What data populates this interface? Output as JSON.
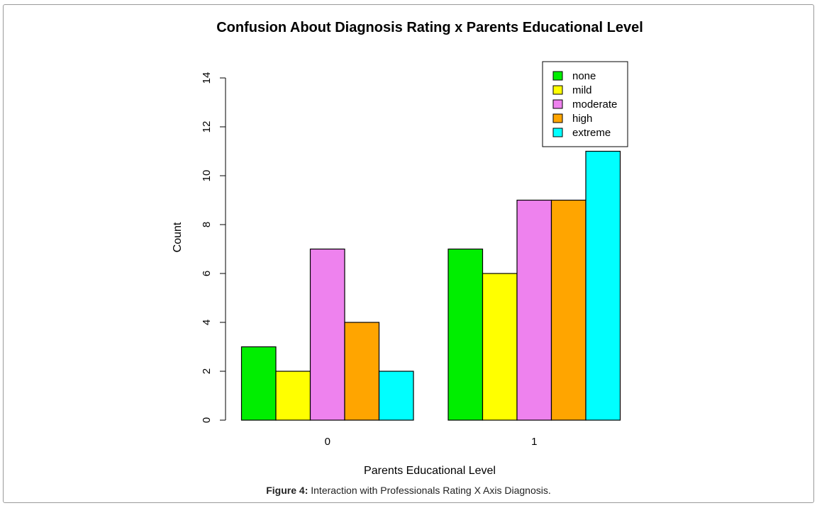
{
  "chart_data": {
    "type": "bar",
    "title": "Confusion About Diagnosis Rating x Parents Educational Level",
    "xlabel": "Parents Educational Level",
    "ylabel": "Count",
    "categories": [
      "0",
      "1"
    ],
    "ylim": [
      0,
      14
    ],
    "yticks": [
      0,
      2,
      4,
      6,
      8,
      10,
      12,
      14
    ],
    "legend_position": "top-right",
    "series": [
      {
        "name": "none",
        "color": "#00ee00",
        "values": [
          3,
          7
        ]
      },
      {
        "name": "mild",
        "color": "#ffff00",
        "values": [
          2,
          6
        ]
      },
      {
        "name": "moderate",
        "color": "#ee82ee",
        "values": [
          7,
          9
        ]
      },
      {
        "name": "high",
        "color": "#ffa500",
        "values": [
          4,
          9
        ]
      },
      {
        "name": "extreme",
        "color": "#00ffff",
        "values": [
          2,
          11
        ]
      }
    ]
  },
  "caption": {
    "label": "Figure 4:",
    "text": " Interaction with Professionals Rating X Axis Diagnosis."
  }
}
